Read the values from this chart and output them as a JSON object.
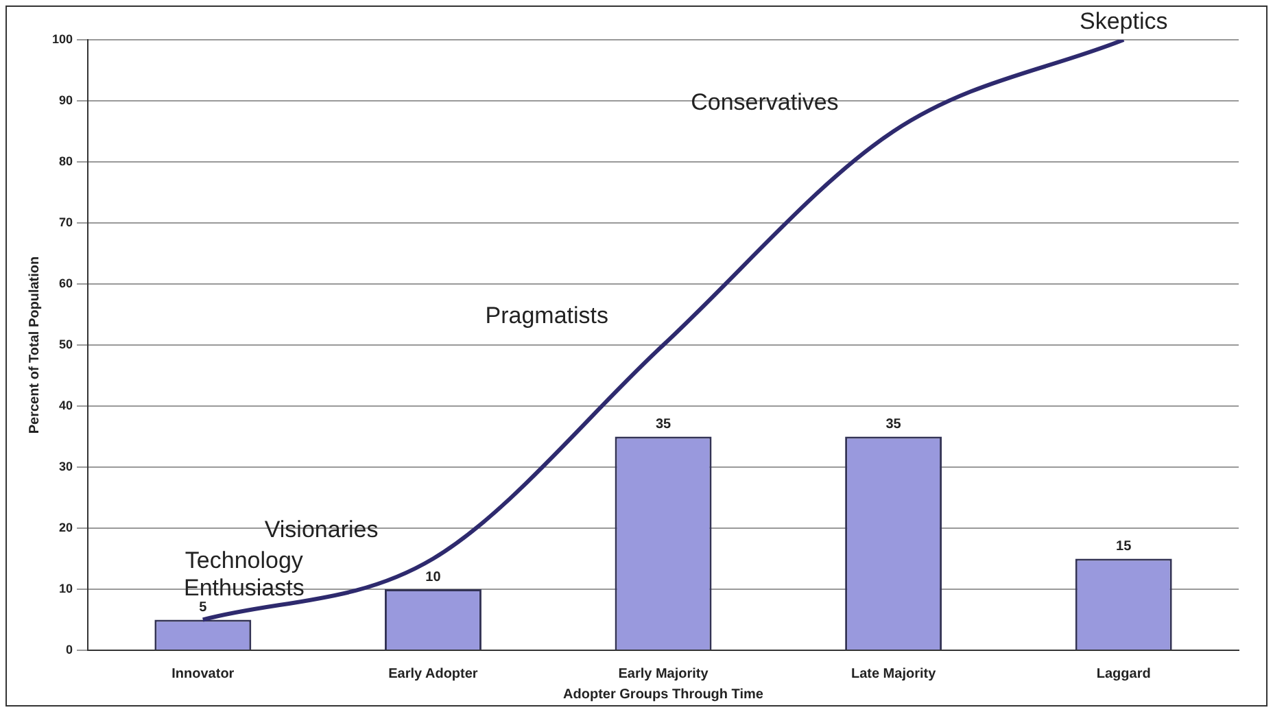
{
  "chart_data": {
    "type": "bar",
    "xlabel": "Adopter Groups Through Time",
    "ylabel": "Percent of Total Population",
    "categories": [
      "Innovator",
      "Early Adopter",
      "Early Majority",
      "Late Majority",
      "Laggard"
    ],
    "series": [
      {
        "color": "#9999dd",
        "values": [
          5,
          10,
          35,
          35,
          15
        ],
        "value_labels": [
          "5",
          "10",
          "35",
          "35",
          "15"
        ]
      },
      {
        "type": "line",
        "color": "#2e2a6e",
        "values": [
          5,
          15,
          50,
          85,
          100
        ],
        "marker": "none"
      }
    ],
    "ylim": [
      0,
      100
    ],
    "yticks": [
      0,
      10,
      20,
      30,
      40,
      50,
      60,
      70,
      80,
      90,
      100
    ],
    "grid": "y",
    "legend": false,
    "annotations": [
      "Technology Enthusiasts",
      "Visionaries",
      "Pragmatists",
      "Conservatives",
      "Skeptics"
    ]
  }
}
